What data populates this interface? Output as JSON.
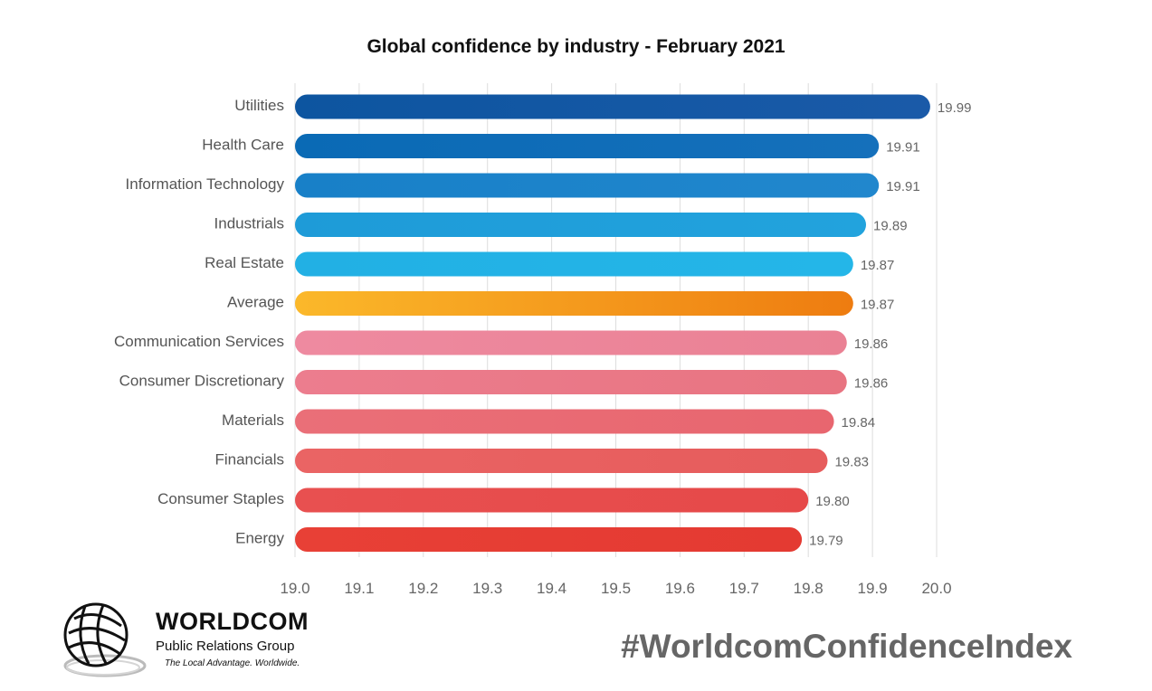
{
  "chart_data": {
    "type": "bar",
    "orientation": "horizontal",
    "title": "Global confidence by industry - February 2021",
    "categories": [
      "Utilities",
      "Health Care",
      "Information Technology",
      "Industrials",
      "Real Estate",
      "Average",
      "Communication Services",
      "Consumer Discretionary",
      "Materials",
      "Financials",
      "Consumer Staples",
      "Energy"
    ],
    "values": [
      19.99,
      19.91,
      19.91,
      19.89,
      19.87,
      19.87,
      19.86,
      19.86,
      19.84,
      19.83,
      19.8,
      19.79
    ],
    "value_labels": [
      "19.99",
      "19.91",
      "19.91",
      "19.89",
      "19.87",
      "19.87",
      "19.86",
      "19.86",
      "19.84",
      "19.83",
      "19.80",
      "19.79"
    ],
    "colors": [
      [
        "#0d55a0",
        "#1a5aa8"
      ],
      [
        "#0a6ab5",
        "#1570bb"
      ],
      [
        "#1880c8",
        "#2187cd"
      ],
      [
        "#1e9bd8",
        "#22a3dd"
      ],
      [
        "#22b0e4",
        "#24b6e8"
      ],
      [
        "#fbb82a",
        "#ee7c10"
      ],
      [
        "#ee8aa0",
        "#ea8194"
      ],
      [
        "#ec7d8e",
        "#e87481"
      ],
      [
        "#ea6f78",
        "#e8666f"
      ],
      [
        "#ea6464",
        "#e65c5c"
      ],
      [
        "#e85050",
        "#e64949"
      ],
      [
        "#e84036",
        "#e43a32"
      ]
    ],
    "xlim": [
      19.0,
      20.0
    ],
    "xticks": [
      "19.0",
      "19.1",
      "19.2",
      "19.3",
      "19.4",
      "19.5",
      "19.6",
      "19.7",
      "19.8",
      "19.9",
      "20.0"
    ],
    "grid": true
  },
  "branding": {
    "logo_name": "WORLDCOM",
    "logo_subtitle": "Public Relations Group",
    "logo_tagline": "The Local Advantage. Worldwide.",
    "hashtag": "#WorldcomConfidenceIndex"
  }
}
